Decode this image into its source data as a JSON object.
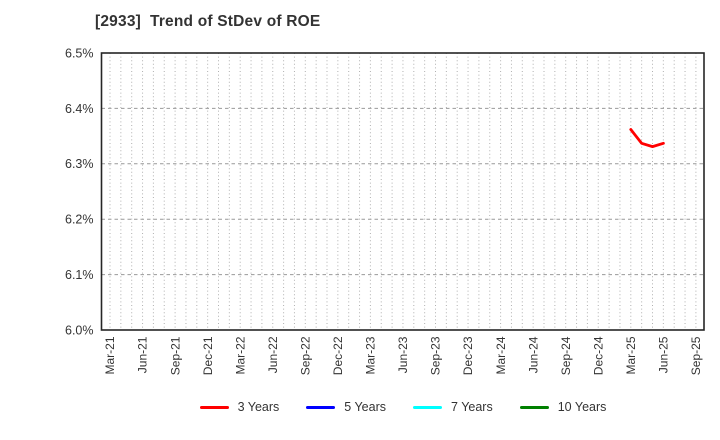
{
  "header": {
    "title": "[2933]  Trend of StDev of ROE"
  },
  "chart_data": {
    "type": "line",
    "title": "[2933]  Trend of StDev of ROE",
    "xlabel": "",
    "ylabel": "",
    "ylim": [
      6.0,
      6.5
    ],
    "y_tick_step": 0.1,
    "y_tick_labels": [
      "6.0%",
      "6.1%",
      "6.2%",
      "6.3%",
      "6.4%",
      "6.5%"
    ],
    "x_tick_labels": [
      "Mar-21",
      "Jun-21",
      "Sep-21",
      "Dec-21",
      "Mar-22",
      "Jun-22",
      "Sep-22",
      "Dec-22",
      "Mar-23",
      "Jun-23",
      "Sep-23",
      "Dec-23",
      "Mar-24",
      "Jun-24",
      "Sep-24",
      "Dec-24",
      "Mar-25",
      "Jun-25",
      "Sep-25"
    ],
    "x_minor_grid": "monthly",
    "grid": true,
    "legend_position": "bottom-center",
    "series": [
      {
        "name": "3 Years",
        "color": "#ff0000",
        "points": [
          {
            "x": "Mar-25",
            "y": 6.362
          },
          {
            "x": "Apr-25",
            "y": 6.337
          },
          {
            "x": "May-25",
            "y": 6.331
          },
          {
            "x": "Jun-25",
            "y": 6.337
          }
        ]
      },
      {
        "name": "5 Years",
        "color": "#0000ff",
        "points": []
      },
      {
        "name": "7 Years",
        "color": "#00ffff",
        "points": []
      },
      {
        "name": "10 Years",
        "color": "#008000",
        "points": []
      }
    ]
  },
  "legend": {
    "items": [
      {
        "label": "3 Years",
        "color": "#ff0000"
      },
      {
        "label": "5 Years",
        "color": "#0000ff"
      },
      {
        "label": "7 Years",
        "color": "#00ffff"
      },
      {
        "label": "10 Years",
        "color": "#008000"
      }
    ]
  },
  "style_colors": {
    "axis_spine": "#262626",
    "major_grid": "#999999",
    "minor_grid": "#b0b0b0",
    "tick_label": "#333333"
  }
}
